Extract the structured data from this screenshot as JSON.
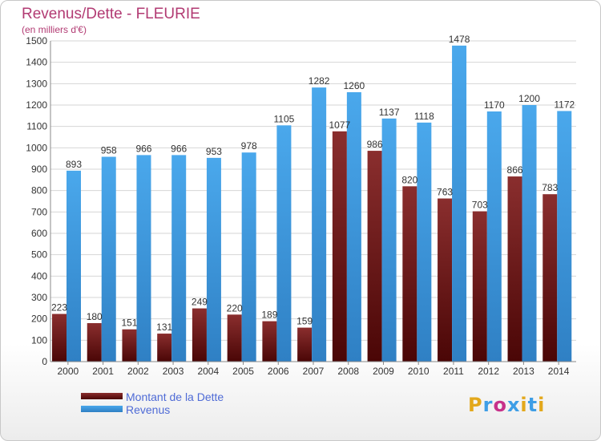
{
  "chart_data": {
    "type": "bar",
    "title": "Revenus/Dette - FLEURIE",
    "subtitle": "(en milliers d'€)",
    "categories": [
      "2000",
      "2001",
      "2002",
      "2003",
      "2004",
      "2005",
      "2006",
      "2007",
      "2008",
      "2009",
      "2010",
      "2011",
      "2012",
      "2013",
      "2014"
    ],
    "series": [
      {
        "name": "Montant de la Dette",
        "color": "#7a1a1a",
        "values": [
          223,
          180,
          151,
          131,
          249,
          220,
          189,
          159,
          1077,
          986,
          820,
          763,
          703,
          866,
          783
        ],
        "labels": [
          "223",
          "180",
          "151",
          "131",
          "249",
          "220",
          "189",
          "159",
          "1077",
          "986",
          "820",
          "763",
          "703",
          "866",
          "783"
        ]
      },
      {
        "name": "Revenus",
        "color": "#3e9ee6",
        "values": [
          893,
          958,
          966,
          966,
          953,
          978,
          1105,
          1282,
          1260,
          1137,
          1118,
          1478,
          1170,
          1200,
          1172
        ],
        "labels": [
          "893",
          "958",
          "966",
          "966",
          "953",
          "978",
          "1105",
          "1282",
          "1260",
          "1137",
          "1118",
          "1478",
          "1170",
          "1200",
          "1172"
        ]
      }
    ],
    "ylim": [
      0,
      1500
    ],
    "yticks": [
      0,
      100,
      200,
      300,
      400,
      500,
      600,
      700,
      800,
      900,
      1000,
      1100,
      1200,
      1300,
      1400,
      1500
    ],
    "grid": true,
    "legend_position": "bottom-left"
  },
  "logo": {
    "text": "Proxiti",
    "colors": [
      "#e3a81c",
      "#3e9ee6",
      "#c7318a",
      "#3e9ee6",
      "#e3a81c",
      "#3e9ee6",
      "#e3a81c"
    ]
  }
}
